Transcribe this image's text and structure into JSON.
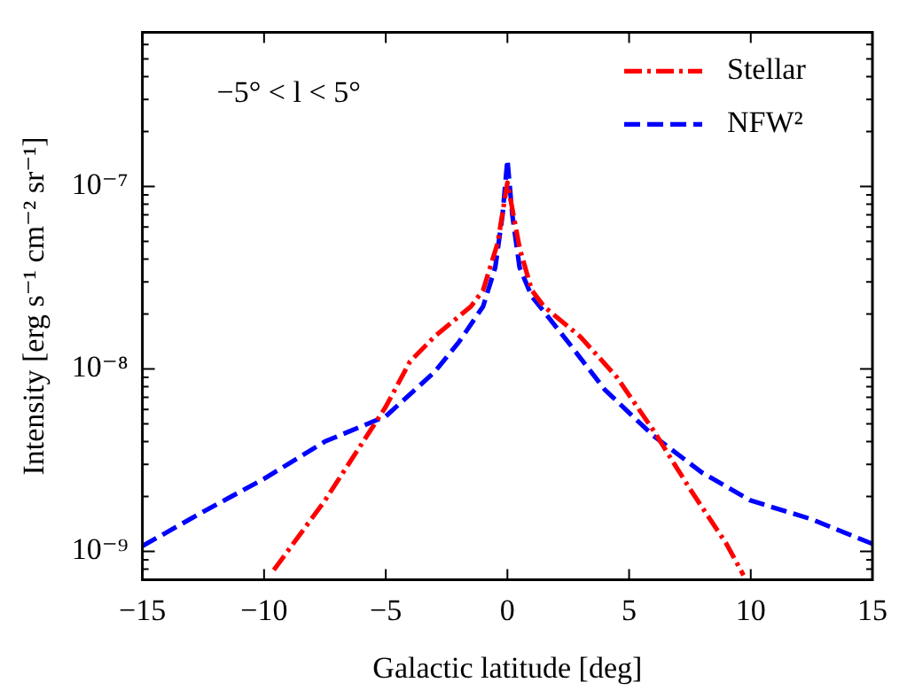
{
  "chart_data": {
    "type": "line",
    "xlabel": "Galactic latitude [deg]",
    "ylabel": "Intensity [erg s⁻¹ cm⁻² sr⁻¹]",
    "log": "y",
    "xlim": [
      -15,
      15
    ],
    "ylim": [
      7.2e-10,
      7e-07
    ],
    "xticks": [
      {
        "value": -15,
        "label": "−15"
      },
      {
        "value": -10,
        "label": "−10"
      },
      {
        "value": -5,
        "label": "−5"
      },
      0,
      5,
      10,
      15
    ],
    "yticks": [
      {
        "value": 8e-10,
        "label": null
      },
      {
        "value": 9e-10,
        "label": null
      },
      {
        "value": 1e-09,
        "label": "10⁻⁹"
      },
      {
        "value": 2e-09,
        "label": null
      },
      {
        "value": 3e-09,
        "label": null
      },
      {
        "value": 4e-09,
        "label": null
      },
      {
        "value": 5e-09,
        "label": null
      },
      {
        "value": 6e-09,
        "label": null
      },
      {
        "value": 7e-09,
        "label": null
      },
      {
        "value": 8e-09,
        "label": null
      },
      {
        "value": 9e-09,
        "label": null
      },
      {
        "value": 1e-08,
        "label": "10⁻⁸"
      },
      {
        "value": 2e-08,
        "label": null
      },
      {
        "value": 3e-08,
        "label": null
      },
      {
        "value": 4e-08,
        "label": null
      },
      {
        "value": 5e-08,
        "label": null
      },
      {
        "value": 6e-08,
        "label": null
      },
      {
        "value": 7e-08,
        "label": null
      },
      {
        "value": 8e-08,
        "label": null
      },
      {
        "value": 9e-08,
        "label": null
      },
      {
        "value": 1e-07,
        "label": "10⁻⁷"
      },
      {
        "value": 2e-07,
        "label": null
      },
      {
        "value": 3e-07,
        "label": null
      },
      {
        "value": 4e-07,
        "label": null
      },
      {
        "value": 5e-07,
        "label": null
      },
      {
        "value": 6e-07,
        "label": null
      }
    ],
    "grid": false,
    "legend": "top right",
    "marker": "none",
    "annotations": [
      "−5° < l < 5°"
    ],
    "series": [
      {
        "name": "Stellar",
        "color": "#ff0000",
        "line_style": "dashdot",
        "x": [
          -9.6,
          -7.5,
          -5,
          -4,
          -3,
          -1.5,
          -1,
          -0.4,
          0,
          0.5,
          1,
          1.5,
          3,
          4.5,
          6,
          7.5,
          9,
          9.7
        ],
        "values": [
          7.9e-10,
          1.9e-09,
          6.2e-09,
          1.1e-08,
          1.5e-08,
          2.2e-08,
          2.7e-08,
          4.9e-08,
          1.05e-07,
          4.6e-08,
          2.7e-08,
          2.2e-08,
          1.5e-08,
          9e-09,
          4.6e-09,
          2.2e-09,
          1.1e-09,
          7.4e-10
        ]
      },
      {
        "name": "NFW²",
        "color": "#0000ff",
        "line_style": "dashed",
        "x": [
          -15,
          -12.5,
          -10,
          -7.5,
          -5,
          -3,
          -2,
          -1,
          -0.5,
          -0.2,
          0,
          0.2,
          0.5,
          1,
          2.5,
          4,
          6,
          8,
          10,
          12.5,
          15
        ],
        "values": [
          1.07e-09,
          1.65e-09,
          2.5e-09,
          4e-09,
          5.5e-09,
          9.6e-09,
          1.4e-08,
          2.2e-08,
          3.6e-08,
          7e-08,
          1.4e-07,
          7e-08,
          3.6e-08,
          2.5e-08,
          1.4e-08,
          7.7e-09,
          4.3e-09,
          2.7e-09,
          1.9e-09,
          1.5e-09,
          1.1e-09
        ]
      }
    ]
  }
}
